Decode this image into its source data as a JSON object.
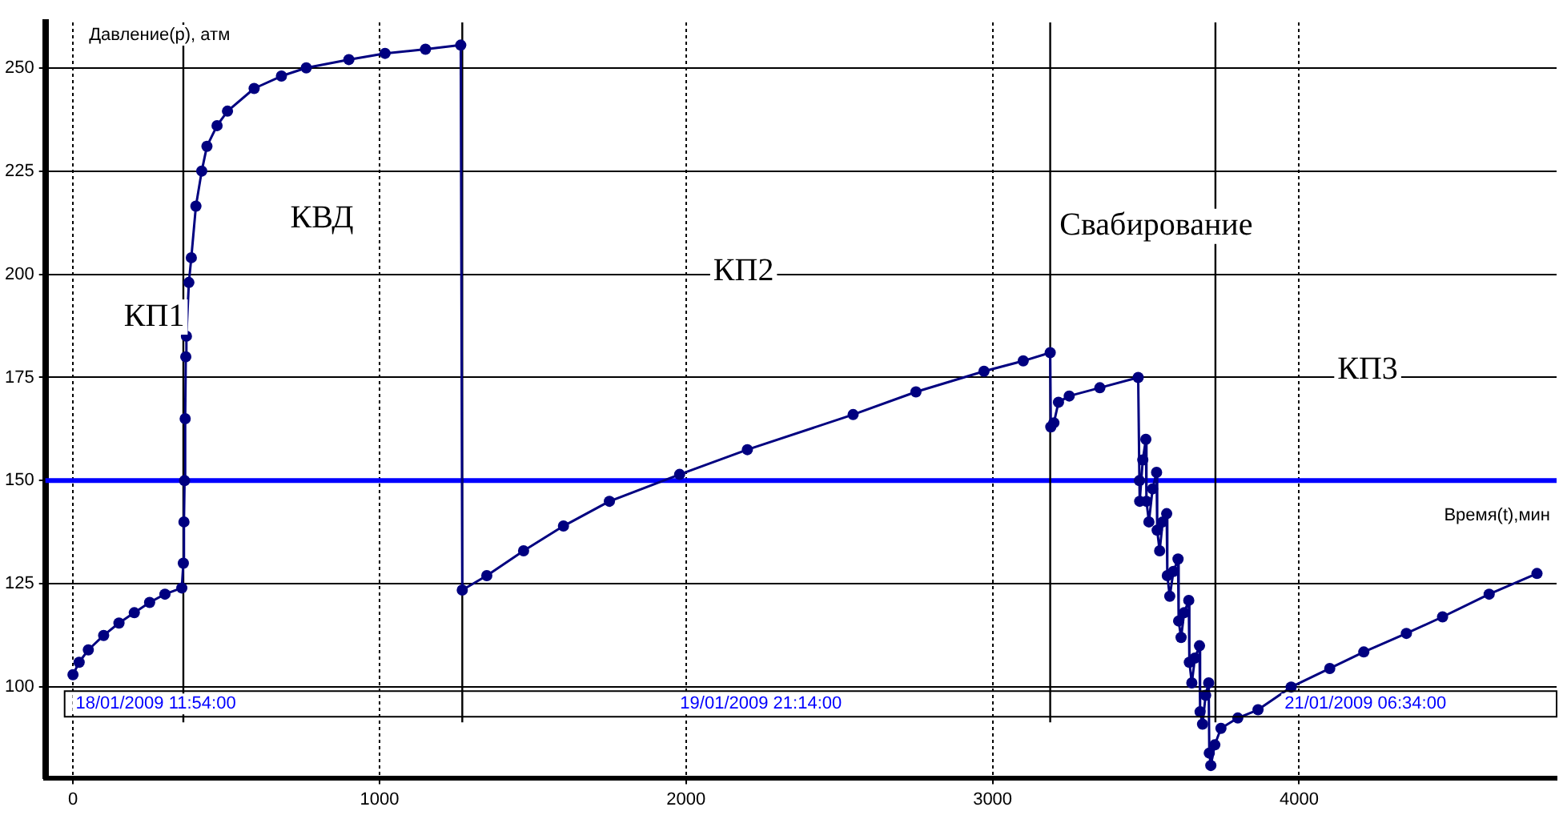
{
  "chart_data": {
    "type": "line",
    "xlabel": "Время(t),мин",
    "ylabel": "Давление(p), атм",
    "xlim": [
      -90,
      4840
    ],
    "ylim": [
      78,
      261
    ],
    "xticks": [
      0,
      1000,
      2000,
      3000,
      4000
    ],
    "yticks": [
      100,
      125,
      150,
      175,
      200,
      225,
      250
    ],
    "grid": true,
    "legend": false,
    "marker": "circle",
    "line_style": "solid",
    "series": [
      {
        "color": "#000080",
        "x": [
          0,
          20,
          50,
          100,
          150,
          200,
          250,
          300,
          355,
          360,
          362,
          364,
          366,
          368,
          370,
          378,
          386,
          401,
          420,
          437,
          470,
          504,
          591,
          680,
          761,
          900,
          1018,
          1150,
          1265,
          1270,
          1350,
          1470,
          1600,
          1750,
          1979,
          2200,
          2545,
          2750,
          2972,
          3100,
          3188,
          3190,
          3200,
          3215,
          3250,
          3350,
          3475,
          3479,
          3480,
          3490,
          3500,
          3502,
          3510,
          3522,
          3535,
          3537,
          3545,
          3555,
          3568,
          3570,
          3578,
          3590,
          3605,
          3607,
          3615,
          3625,
          3640,
          3642,
          3650,
          3660,
          3675,
          3677,
          3685,
          3695,
          3705,
          3707,
          3712,
          3725,
          3745,
          3800,
          3866,
          3974,
          4100,
          4211,
          4350,
          4468,
          4620,
          4776
        ],
        "values": [
          103,
          106,
          109,
          112.5,
          115.5,
          118,
          120.5,
          122.5,
          124,
          130,
          140,
          150,
          165,
          180,
          185,
          198,
          204,
          216.5,
          225,
          231,
          236,
          239.5,
          245,
          248,
          250,
          252,
          253.5,
          254.5,
          255.5,
          123.5,
          127,
          133,
          139,
          145,
          151.5,
          157.5,
          166,
          171.5,
          176.5,
          179,
          181,
          163,
          164,
          169,
          170.5,
          172.5,
          175,
          150,
          145,
          155,
          160,
          145,
          140,
          148,
          152,
          138,
          133,
          140,
          142,
          127,
          122,
          128,
          131,
          116,
          112,
          118,
          121,
          106,
          101,
          107,
          110,
          94,
          91,
          98,
          101,
          84,
          81,
          86,
          90,
          92.5,
          94.5,
          100,
          104.5,
          108.5,
          113,
          117,
          122.5,
          127.5
        ]
      }
    ],
    "ref_lines": [
      {
        "axis": "y",
        "value": 150,
        "color": "#0000ff"
      },
      {
        "axis": "x",
        "value": 360,
        "color": "#000000"
      },
      {
        "axis": "x",
        "value": 1270,
        "color": "#000000"
      },
      {
        "axis": "x",
        "value": 3188,
        "color": "#000000"
      },
      {
        "axis": "x",
        "value": 3727,
        "color": "#000000"
      }
    ],
    "annotations": [
      "КП1",
      "КВД",
      "КП2",
      "Свабирование",
      "КП3",
      "18/01/2009 11:54:00",
      "19/01/2009 21:14:00",
      "21/01/2009 06:34:00"
    ]
  }
}
